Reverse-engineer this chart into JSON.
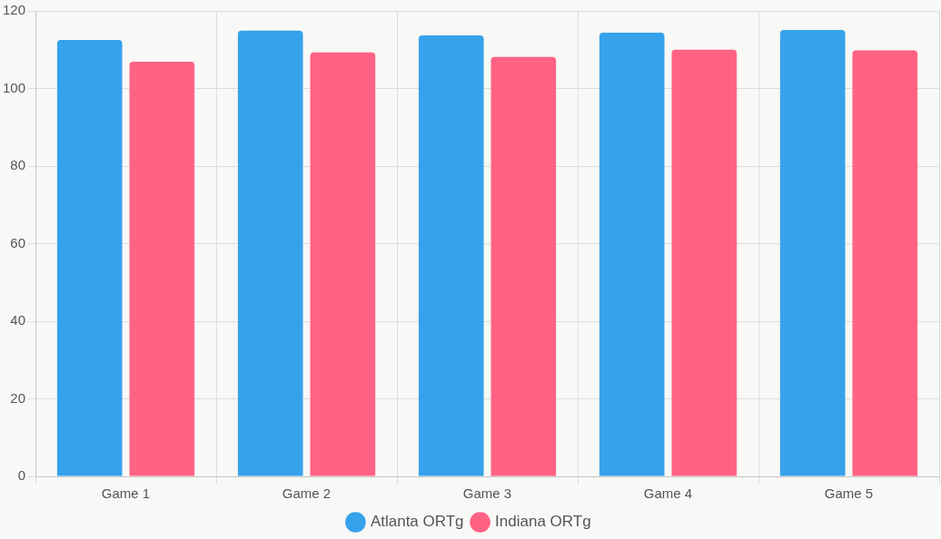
{
  "chart_data": {
    "type": "bar",
    "categories": [
      "Game 1",
      "Game 2",
      "Game 3",
      "Game 4",
      "Game 5"
    ],
    "series": [
      {
        "name": "Atlanta ORTg",
        "color": "#36a2eb",
        "values": [
          112.5,
          114.9,
          113.7,
          114.4,
          115.1
        ]
      },
      {
        "name": "Indiana ORTg",
        "color": "#ff6384",
        "values": [
          106.9,
          109.3,
          108.1,
          110.0,
          109.8
        ]
      }
    ],
    "ylim": [
      0,
      120
    ],
    "yticks": [
      0,
      20,
      40,
      60,
      80,
      100,
      120
    ],
    "grid": true,
    "legend": "bottom"
  }
}
